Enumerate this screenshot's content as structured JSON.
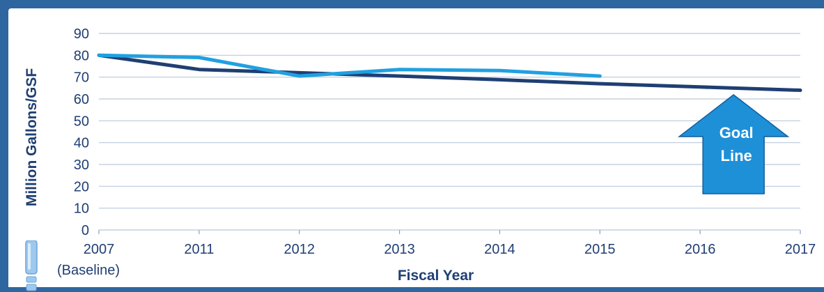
{
  "chart_data": {
    "type": "line",
    "title": "",
    "xlabel": "Fiscal Year",
    "ylabel": "Million Gallons/GSF",
    "categories": [
      "2007",
      "2011",
      "2012",
      "2013",
      "2014",
      "2015",
      "2016",
      "2017"
    ],
    "baseline_note": "(Baseline)",
    "ylim": [
      0,
      90
    ],
    "yticks": [
      0,
      10,
      20,
      30,
      40,
      50,
      60,
      70,
      80,
      90
    ],
    "grid": true,
    "series": [
      {
        "name": "",
        "color": "#1f3f73",
        "values": [
          80,
          73.5,
          72,
          70.5,
          68.8,
          67,
          65.5,
          64
        ]
      },
      {
        "name": "",
        "color": "#21a0e0",
        "values": [
          80,
          79,
          70.5,
          73.5,
          73,
          70.5,
          null,
          null
        ]
      }
    ],
    "annotations": [
      {
        "text_lines": [
          "Goal",
          "Line"
        ],
        "shape": "up-arrow",
        "color": "#1e90d8",
        "x_category": "2016"
      }
    ]
  },
  "colors": {
    "frame": "#2e66a0",
    "text": "#1f3f73",
    "grid": "#b9c8dc",
    "axis": "#8aa0bd"
  },
  "icons": {
    "side": "glass-icon"
  }
}
